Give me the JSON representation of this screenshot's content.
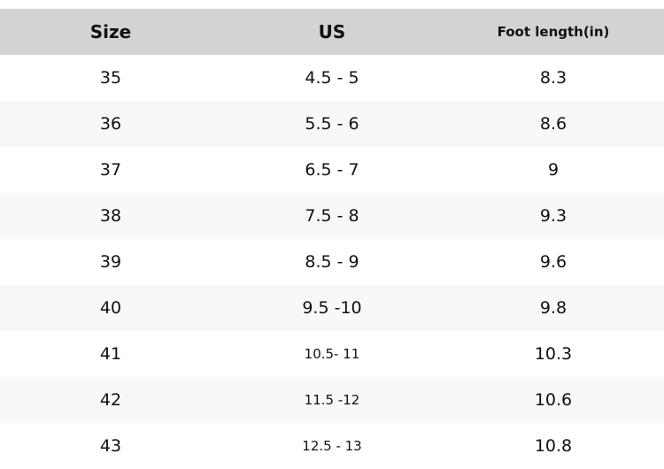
{
  "headers": [
    "Size",
    "US",
    "Foot length(in)"
  ],
  "rows": [
    [
      "35",
      "4.5 - 5",
      "8.3"
    ],
    [
      "36",
      "5.5 - 6",
      "8.6"
    ],
    [
      "37",
      "6.5 - 7",
      "9"
    ],
    [
      "38",
      "7.5 - 8",
      "9.3"
    ],
    [
      "39",
      "8.5 - 9",
      "9.6"
    ],
    [
      "40",
      "9.5 -10",
      "9.8"
    ],
    [
      "41",
      "10.5- 11",
      "10.3"
    ],
    [
      "42",
      "11.5 -12",
      "10.6"
    ],
    [
      "43",
      "12.5 - 13",
      "10.8"
    ]
  ],
  "colors": {
    "header_bg": "#d3d3d3",
    "alt_row_bg": "#f8f8f8"
  }
}
